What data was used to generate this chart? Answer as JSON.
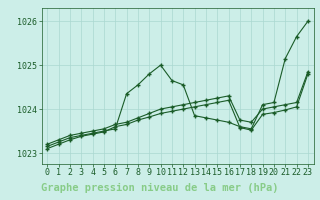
{
  "title": "Graphe pression niveau de la mer (hPa)",
  "background_color": "#cceee8",
  "grid_color": "#aad8d0",
  "line_color": "#1a5c28",
  "title_bg_color": "#2d6b3a",
  "title_text_color": "#88cc88",
  "x_labels": [
    "0",
    "1",
    "2",
    "3",
    "4",
    "5",
    "6",
    "7",
    "8",
    "9",
    "10",
    "11",
    "12",
    "13",
    "14",
    "15",
    "16",
    "17",
    "18",
    "19",
    "20",
    "21",
    "22",
    "23"
  ],
  "hours": [
    0,
    1,
    2,
    3,
    4,
    5,
    6,
    7,
    8,
    9,
    10,
    11,
    12,
    13,
    14,
    15,
    16,
    17,
    18,
    19,
    20,
    21,
    22,
    23
  ],
  "series1": [
    1023.15,
    1023.25,
    1023.35,
    1023.4,
    1023.45,
    1023.5,
    1023.55,
    1024.35,
    1024.55,
    1024.8,
    1025.0,
    1024.65,
    1024.55,
    1023.85,
    1023.8,
    1023.75,
    1023.7,
    1023.6,
    1023.55,
    1024.1,
    1024.15,
    1025.15,
    1025.65,
    1026.0
  ],
  "series2": [
    1023.2,
    1023.3,
    1023.4,
    1023.45,
    1023.5,
    1023.55,
    1023.65,
    1023.7,
    1023.8,
    1023.9,
    1024.0,
    1024.05,
    1024.1,
    1024.15,
    1024.2,
    1024.25,
    1024.3,
    1023.75,
    1023.7,
    1024.0,
    1024.05,
    1024.1,
    1024.15,
    1024.85
  ],
  "series3": [
    1023.1,
    1023.2,
    1023.3,
    1023.38,
    1023.43,
    1023.48,
    1023.6,
    1023.65,
    1023.75,
    1023.82,
    1023.9,
    1023.95,
    1024.0,
    1024.05,
    1024.1,
    1024.15,
    1024.2,
    1023.58,
    1023.52,
    1023.88,
    1023.92,
    1023.98,
    1024.05,
    1024.8
  ],
  "ylim": [
    1022.75,
    1026.3
  ],
  "yticks": [
    1023,
    1024,
    1025,
    1026
  ],
  "tick_fontsize": 6,
  "title_fontsize": 7.5
}
